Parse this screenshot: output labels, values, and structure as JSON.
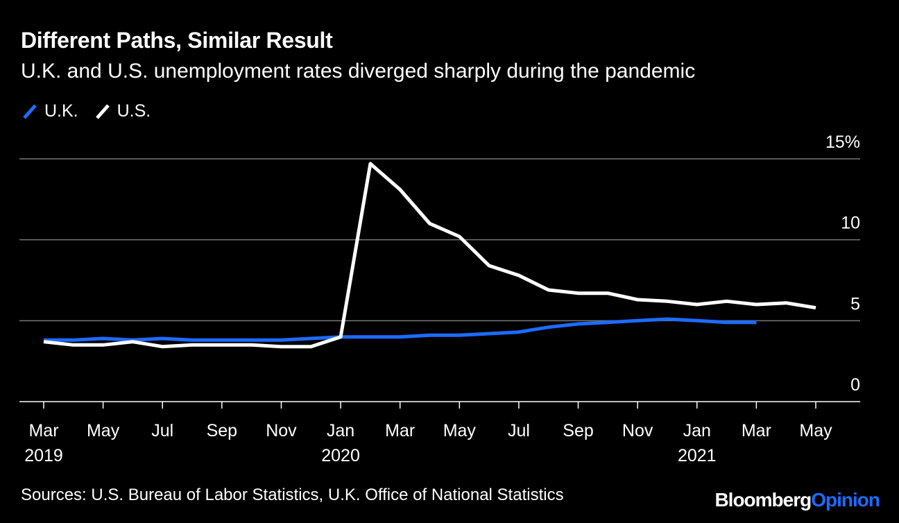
{
  "title": "Different Paths, Similar Result",
  "subtitle": "U.K. and U.S. unemployment rates diverged sharply during the pandemic",
  "source": "Sources: U.S. Bureau of Labor Statistics, U.K. Office of National Statistics",
  "brand": {
    "part1": "Bloomberg",
    "part2": "Opinion"
  },
  "colors": {
    "uk": "#1e6bff",
    "us": "#ffffff",
    "background": "#000000",
    "grid": "#777777"
  },
  "chart_data": {
    "type": "line",
    "x": [
      "2019-03",
      "2019-04",
      "2019-05",
      "2019-06",
      "2019-07",
      "2019-08",
      "2019-09",
      "2019-10",
      "2019-11",
      "2019-12",
      "2020-01",
      "2020-02",
      "2020-03",
      "2020-04",
      "2020-05",
      "2020-06",
      "2020-07",
      "2020-08",
      "2020-09",
      "2020-10",
      "2020-11",
      "2020-12",
      "2021-01",
      "2021-02",
      "2021-03",
      "2021-04",
      "2021-05"
    ],
    "series": [
      {
        "name": "U.K.",
        "color": "#1e6bff",
        "values": [
          3.8,
          3.8,
          3.9,
          3.8,
          3.9,
          3.8,
          3.8,
          3.8,
          3.8,
          3.9,
          4.0,
          4.0,
          4.0,
          4.1,
          4.1,
          4.2,
          4.3,
          4.6,
          4.8,
          4.9,
          5.0,
          5.1,
          5.0,
          4.9,
          4.9,
          null,
          null
        ]
      },
      {
        "name": "U.S.",
        "color": "#ffffff",
        "values": [
          3.7,
          3.5,
          3.5,
          3.7,
          3.4,
          3.5,
          3.5,
          3.5,
          3.4,
          3.4,
          4.0,
          14.7,
          13.1,
          11.0,
          10.2,
          8.4,
          7.8,
          6.9,
          6.7,
          6.7,
          6.3,
          6.2,
          6.0,
          6.2,
          6.0,
          6.1,
          5.8
        ]
      }
    ],
    "xticks": [
      {
        "x": "2019-03",
        "label": "Mar",
        "year": "2019"
      },
      {
        "x": "2019-05",
        "label": "May",
        "year": ""
      },
      {
        "x": "2019-07",
        "label": "Jul",
        "year": ""
      },
      {
        "x": "2019-09",
        "label": "Sep",
        "year": ""
      },
      {
        "x": "2019-11",
        "label": "Nov",
        "year": ""
      },
      {
        "x": "2020-01",
        "label": "Jan",
        "year": "2020"
      },
      {
        "x": "2020-03",
        "label": "Mar",
        "year": ""
      },
      {
        "x": "2020-05",
        "label": "May",
        "year": ""
      },
      {
        "x": "2020-07",
        "label": "Jul",
        "year": ""
      },
      {
        "x": "2020-09",
        "label": "Sep",
        "year": ""
      },
      {
        "x": "2020-11",
        "label": "Nov",
        "year": ""
      },
      {
        "x": "2021-01",
        "label": "Jan",
        "year": "2021"
      },
      {
        "x": "2021-03",
        "label": "Mar",
        "year": ""
      },
      {
        "x": "2021-05",
        "label": "May",
        "year": ""
      }
    ],
    "yticks": [
      {
        "value": 0,
        "label": "0"
      },
      {
        "value": 5,
        "label": "5"
      },
      {
        "value": 10,
        "label": "10"
      },
      {
        "value": 15,
        "label": "15%"
      }
    ],
    "ylim": [
      0,
      15
    ],
    "grid": true,
    "legend_position": "top-left",
    "xlabel": "",
    "ylabel": ""
  }
}
